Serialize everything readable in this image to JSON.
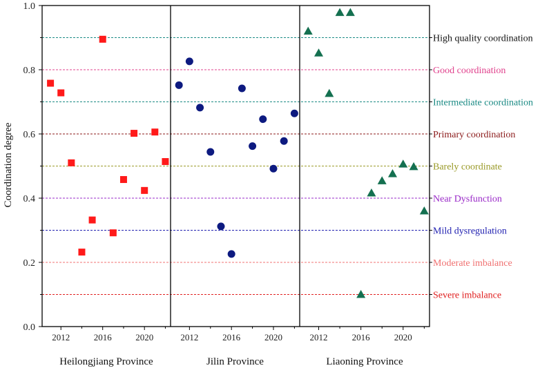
{
  "chart_data": {
    "type": "scatter",
    "ylabel": "Coordination degree",
    "ylim": [
      0,
      1.0
    ],
    "yticks": [
      "0.0",
      "0.2",
      "0.4",
      "0.6",
      "0.8",
      "1.0"
    ],
    "xlim": [
      2010.2,
      2022.5
    ],
    "xticks": [
      2012,
      2016,
      2020
    ],
    "xtick_labels": [
      "2012",
      "2016",
      "2020"
    ],
    "thresholds": [
      {
        "value": 0.9,
        "label": "High quality coordination",
        "color": "#1a8a84"
      },
      {
        "value": 0.8,
        "label": "Good coordination",
        "color": "#e0408c"
      },
      {
        "value": 0.7,
        "label": "Intermediate coordination",
        "color": "#1a8a84"
      },
      {
        "value": 0.6,
        "label": "Primary coordination",
        "color": "#8b1a1a"
      },
      {
        "value": 0.5,
        "label": "Barely coordinate",
        "color": "#9a9a28"
      },
      {
        "value": 0.4,
        "label": "Near Dysfunction",
        "color": "#9a2ac8"
      },
      {
        "value": 0.3,
        "label": "Mild dysregulation",
        "color": "#1f1fb0"
      },
      {
        "value": 0.2,
        "label": "Moderate imbalance",
        "color": "#f07070"
      },
      {
        "value": 0.1,
        "label": "Severe imbalance",
        "color": "#e02020"
      }
    ],
    "threshold_label_colors": {
      "High quality coordination": "#111111"
    },
    "series": [
      {
        "name": "Heilongjiang Province",
        "marker": "square",
        "color": "#ff1a1a",
        "x": [
          2011,
          2012,
          2013,
          2014,
          2015,
          2016,
          2017,
          2018,
          2019,
          2020,
          2021,
          2022
        ],
        "y": [
          0.758,
          0.728,
          0.51,
          0.232,
          0.332,
          0.895,
          0.292,
          0.458,
          0.602,
          0.424,
          0.606,
          0.514
        ]
      },
      {
        "name": "Jilin Province",
        "marker": "circle",
        "color": "#0d1a80",
        "x": [
          2011,
          2012,
          2013,
          2014,
          2015,
          2016,
          2017,
          2018,
          2019,
          2020,
          2021,
          2022
        ],
        "y": [
          0.752,
          0.826,
          0.682,
          0.544,
          0.312,
          0.226,
          0.742,
          0.562,
          0.646,
          0.492,
          0.578,
          0.664
        ]
      },
      {
        "name": "Liaoning Province",
        "marker": "triangle",
        "color": "#147050",
        "x": [
          2011,
          2012,
          2013,
          2014,
          2015,
          2016,
          2017,
          2018,
          2019,
          2020,
          2021,
          2022
        ],
        "y": [
          0.92,
          0.852,
          0.726,
          0.978,
          0.978,
          0.1,
          0.416,
          0.454,
          0.476,
          0.506,
          0.498,
          0.36
        ]
      }
    ]
  }
}
